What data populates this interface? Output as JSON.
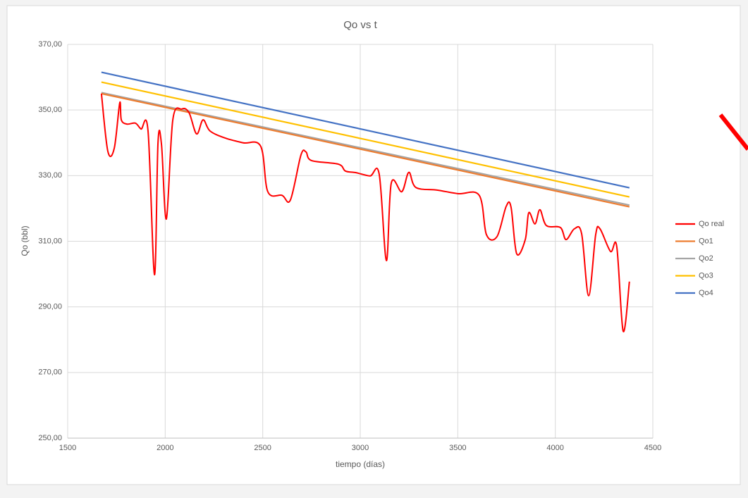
{
  "chart_data": {
    "type": "line",
    "title": "Qo vs t",
    "xlabel": "tiempo (días)",
    "ylabel": "Qo (bbl)",
    "xlim": [
      1500,
      4500
    ],
    "xticks": [
      1500,
      2000,
      2500,
      3000,
      3500,
      4000,
      4500
    ],
    "ylim": [
      250,
      370
    ],
    "yticks": [
      {
        "value": 250,
        "label": "250,00"
      },
      {
        "value": 270,
        "label": "270,00"
      },
      {
        "value": 290,
        "label": "290,00"
      },
      {
        "value": 310,
        "label": "310,00"
      },
      {
        "value": 330,
        "label": "330,00"
      },
      {
        "value": 350,
        "label": "350,00"
      },
      {
        "value": 370,
        "label": "370,00"
      }
    ],
    "grid": true,
    "legend": "right",
    "series": [
      {
        "name": "Qo real",
        "color": "#ff0000",
        "x": [
          1673,
          1706,
          1739,
          1767,
          1775,
          1804,
          1847,
          1876,
          1912,
          1945,
          1963,
          1981,
          2006,
          2039,
          2085,
          2122,
          2161,
          2194,
          2230,
          2310,
          2400,
          2490,
          2526,
          2599,
          2642,
          2696,
          2722,
          2750,
          2888,
          2924,
          2978,
          3050,
          3097,
          3134,
          3159,
          3213,
          3249,
          3285,
          3394,
          3502,
          3610,
          3647,
          3701,
          3748,
          3773,
          3802,
          3846,
          3864,
          3896,
          3921,
          3954,
          4026,
          4055,
          4098,
          4135,
          4171,
          4207,
          4229,
          4283,
          4315,
          4348,
          4380
        ],
        "values": [
          355,
          337.4,
          338.4,
          352.2,
          347,
          345.7,
          346,
          344.2,
          343.6,
          299.8,
          340,
          339.5,
          316.8,
          347,
          350.3,
          349.2,
          342.7,
          347,
          343.6,
          341.4,
          340,
          338.9,
          325.1,
          324,
          322.6,
          336.3,
          337.2,
          334.6,
          333.5,
          331.4,
          330.9,
          329.9,
          330.5,
          304.1,
          327.7,
          325.1,
          331,
          326.4,
          325.6,
          324.5,
          324,
          312,
          311.4,
          320.6,
          320.4,
          306.2,
          310.5,
          318.7,
          315.3,
          319.6,
          314.8,
          314.2,
          310.5,
          313.8,
          312.3,
          293.4,
          312,
          313.8,
          306.9,
          308.4,
          282.6,
          297.7
        ]
      },
      {
        "name": "Qo1",
        "color": "#ed7d31",
        "x": [
          1673,
          4380
        ],
        "values": [
          355,
          320.5
        ]
      },
      {
        "name": "Qo2",
        "color": "#a5a5a5",
        "x": [
          1673,
          4380
        ],
        "values": [
          355.3,
          321
        ]
      },
      {
        "name": "Qo3",
        "color": "#ffc000",
        "x": [
          1673,
          4380
        ],
        "values": [
          358.5,
          323.5
        ]
      },
      {
        "name": "Qo4",
        "color": "#4472c4",
        "x": [
          1673,
          4380
        ],
        "values": [
          361.5,
          326.3
        ]
      }
    ]
  }
}
